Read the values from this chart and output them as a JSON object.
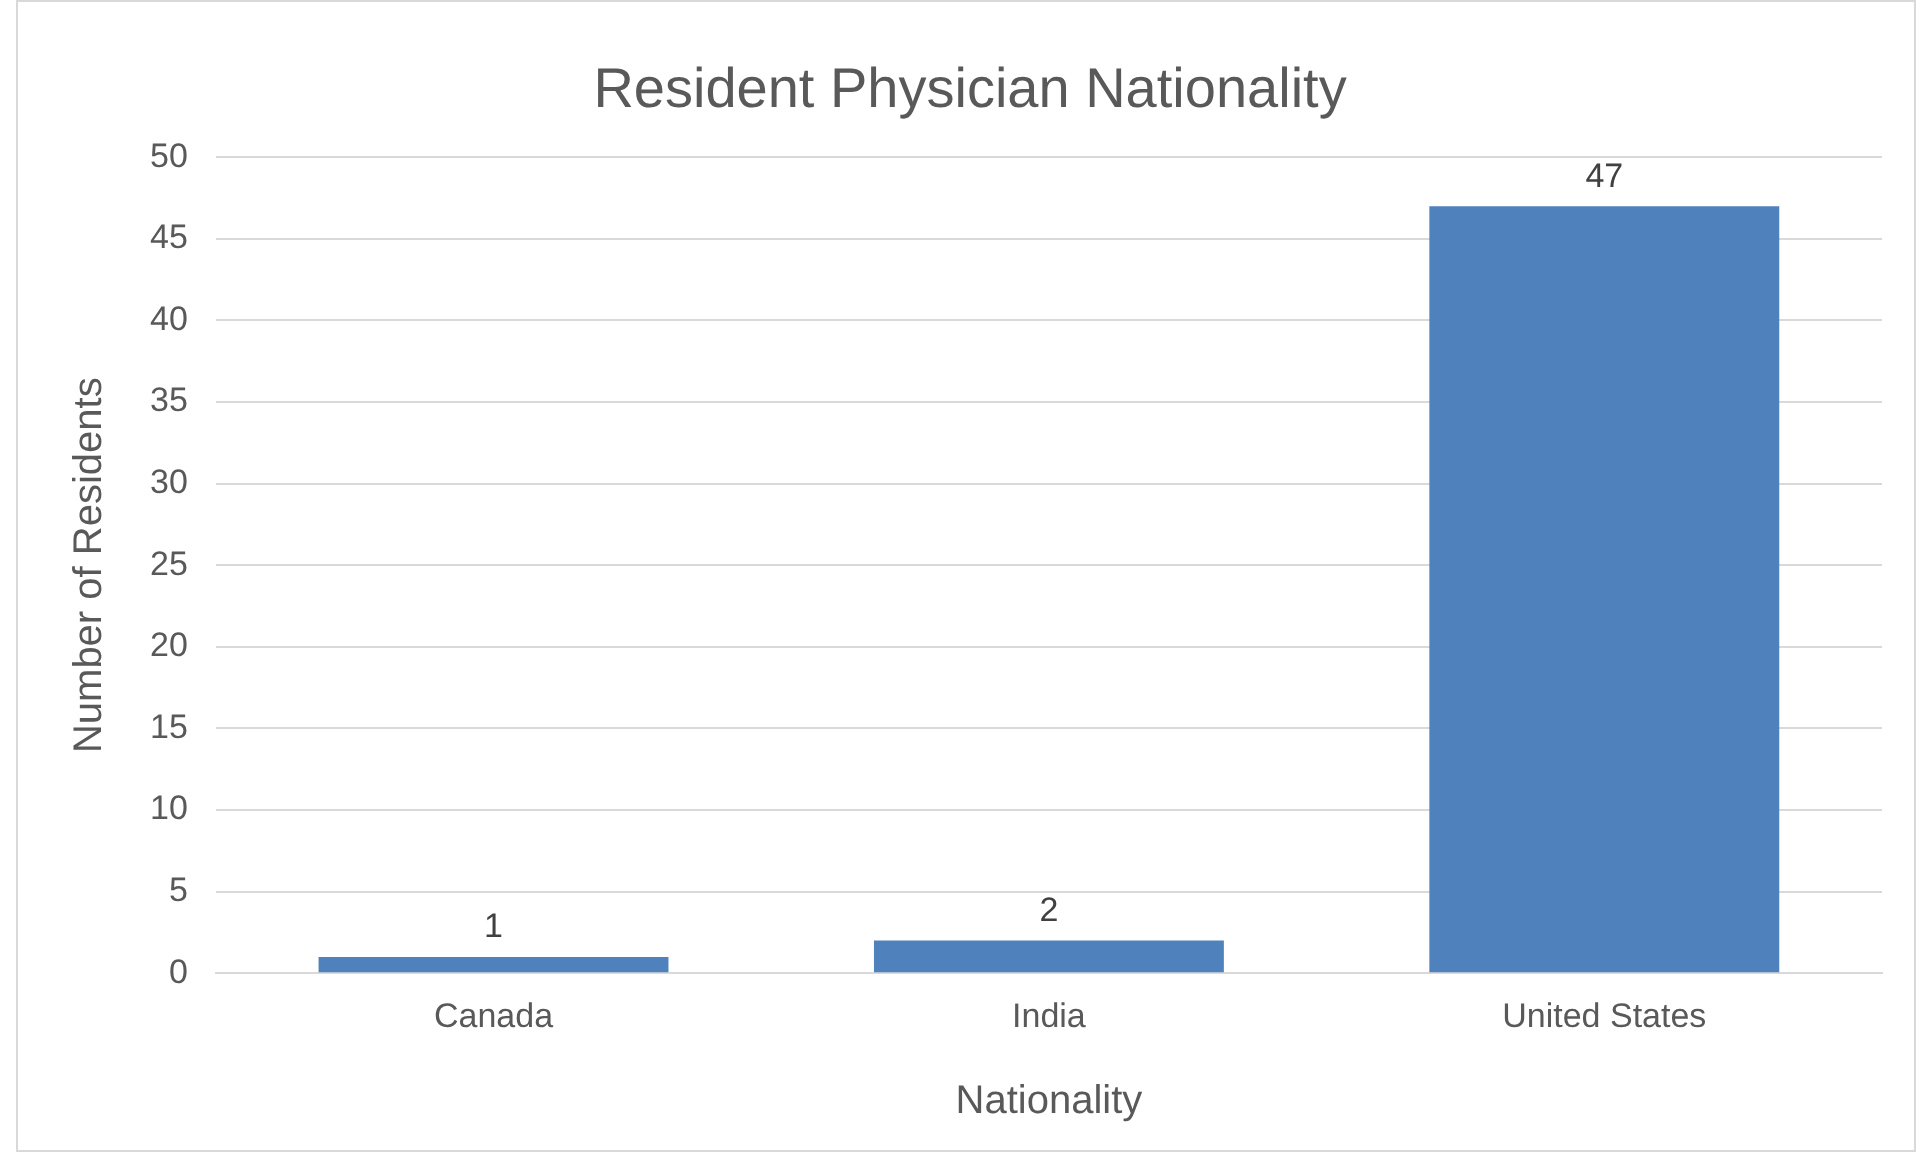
{
  "chart_data": {
    "type": "bar",
    "title": "Resident Physician Nationality",
    "xlabel": "Nationality",
    "ylabel": "Number of Residents",
    "categories": [
      "Canada",
      "India",
      "United States"
    ],
    "values": [
      1,
      2,
      47
    ],
    "color": "#4f81bd",
    "ylim": [
      0,
      50
    ],
    "yticks": [
      0,
      5,
      10,
      15,
      20,
      25,
      30,
      35,
      40,
      45,
      50
    ],
    "grid": "y",
    "data_labels": true
  }
}
